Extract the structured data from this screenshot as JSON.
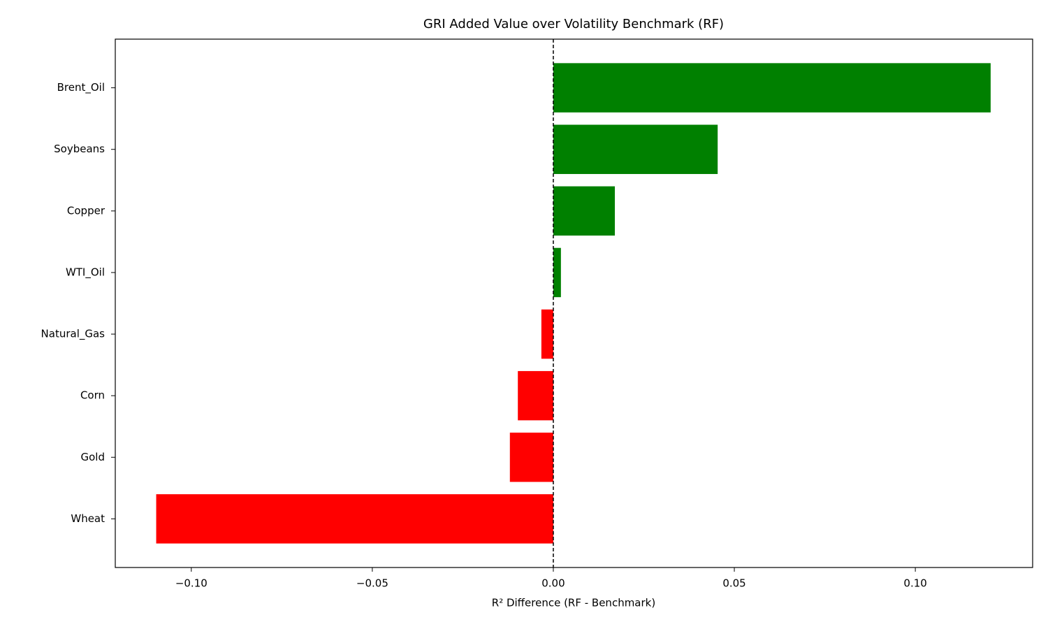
{
  "chart_data": {
    "type": "barh",
    "title": "GRI Added Value over Volatility Benchmark (RF)",
    "xlabel": "R² Difference (RF - Benchmark)",
    "categories": [
      "Brent_Oil",
      "Soybeans",
      "Copper",
      "WTI_Oil",
      "Natural_Gas",
      "Corn",
      "Gold",
      "Wheat"
    ],
    "values": [
      0.1208,
      0.0454,
      0.017,
      0.0021,
      -0.0033,
      -0.0098,
      -0.012,
      -0.1097
    ],
    "colors": [
      "#008000",
      "#008000",
      "#008000",
      "#008000",
      "#ff0000",
      "#ff0000",
      "#ff0000",
      "#ff0000"
    ],
    "xlim": [
      -0.121,
      0.1324
    ],
    "xticks": [
      {
        "value": -0.1,
        "label": "−0.10"
      },
      {
        "value": -0.05,
        "label": "−0.05"
      },
      {
        "value": 0,
        "label": "0.00"
      },
      0.05,
      {
        "value": 0.1,
        "label": "0.10"
      }
    ],
    "vline": 0,
    "grid": false
  }
}
